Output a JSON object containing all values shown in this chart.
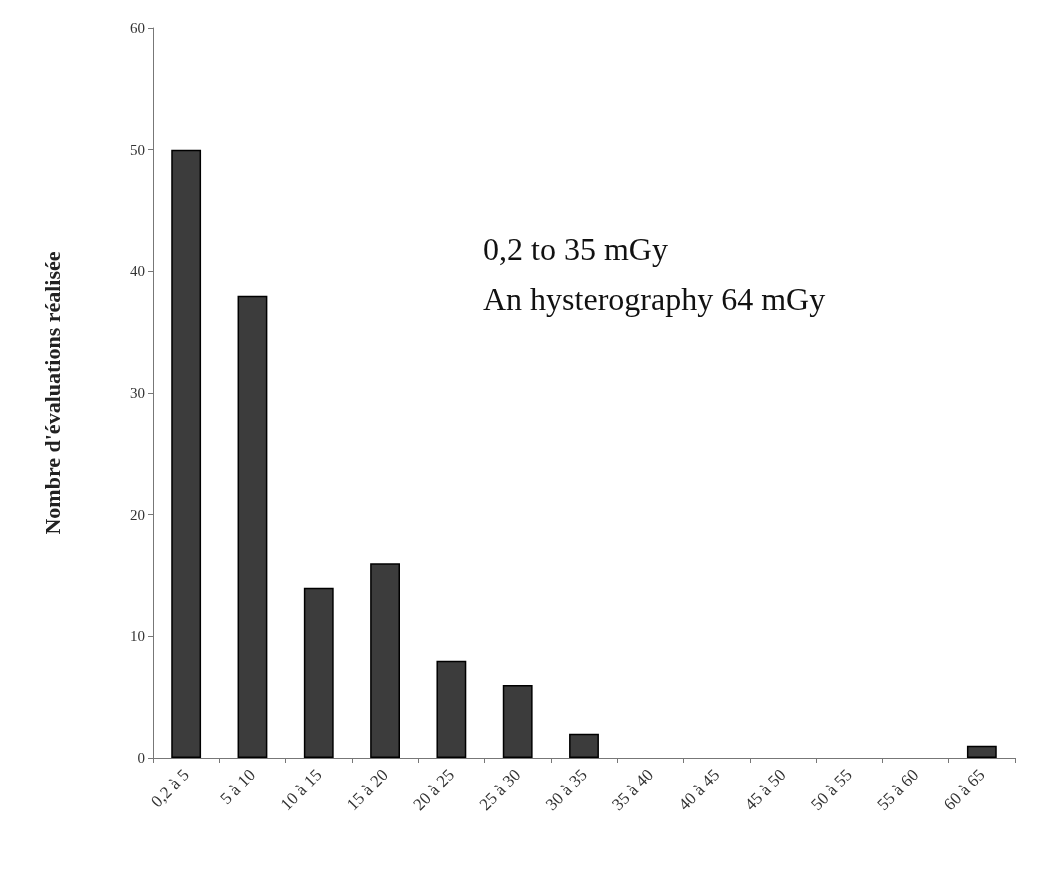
{
  "chart_data": {
    "type": "bar",
    "ylabel": "Nombre d'évaluations réalisée",
    "categories": [
      "0,2 à 5",
      "5 à 10",
      "10 à 15",
      "15 à 20",
      "20 à 25",
      "25 à 30",
      "30 à 35",
      "35 à 40",
      "40 à 45",
      "45 à 50",
      "50 à 55",
      "55 à 60",
      "60 à 65"
    ],
    "values": [
      50,
      38,
      14,
      16,
      8,
      6,
      2,
      0,
      0,
      0,
      0,
      0,
      1
    ],
    "color": "#3c3c3c",
    "ylim": [
      0,
      60
    ],
    "yticks": [
      0,
      10,
      20,
      30,
      40,
      50,
      60
    ],
    "grid": false,
    "annotations": [
      "0,2 to 35 mGy",
      "An hysterography 64 mGy"
    ]
  }
}
